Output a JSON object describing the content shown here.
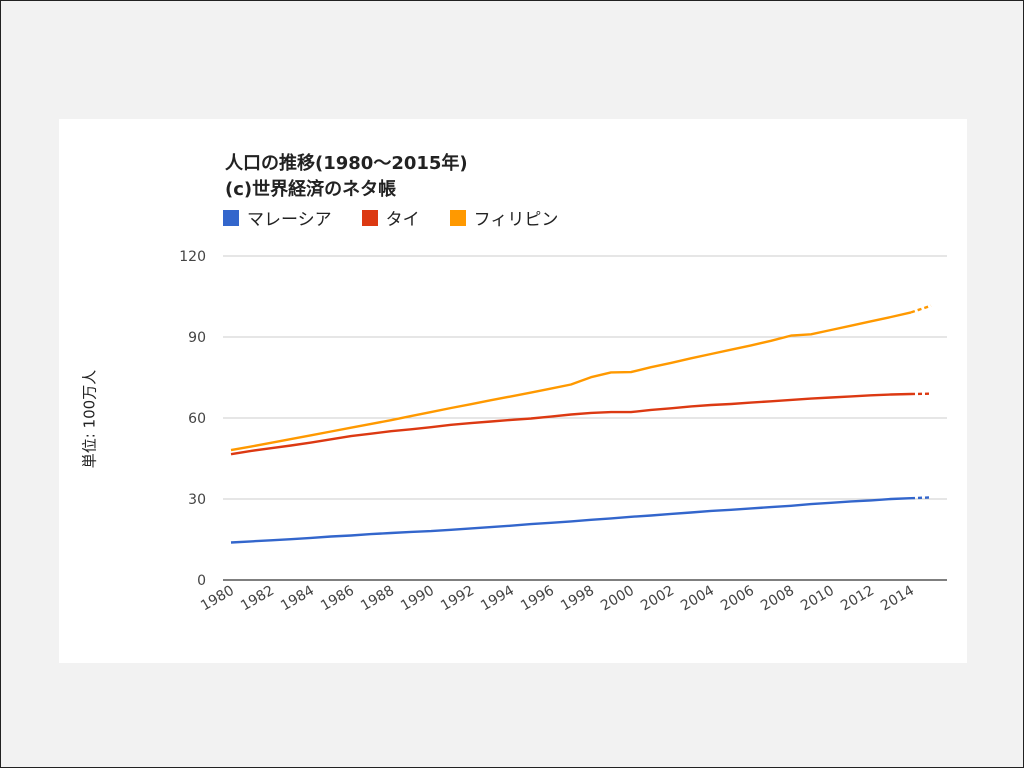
{
  "chart_data": {
    "type": "line",
    "title": "人口の推移(1980～2015年)",
    "subtitle": "(c)世界経済のネタ帳",
    "xlabel": "",
    "ylabel": "単位: 100万人",
    "ylim": [
      0,
      120
    ],
    "yticks": [
      0,
      30,
      60,
      90,
      120
    ],
    "grid": true,
    "legend": "top-left",
    "x": [
      1980,
      1981,
      1982,
      1983,
      1984,
      1985,
      1986,
      1987,
      1988,
      1989,
      1990,
      1991,
      1992,
      1993,
      1994,
      1995,
      1996,
      1997,
      1998,
      1999,
      2000,
      2001,
      2002,
      2003,
      2004,
      2005,
      2006,
      2007,
      2008,
      2009,
      2010,
      2011,
      2012,
      2013,
      2014,
      2015
    ],
    "xtick_labels": [
      "1980",
      "1982",
      "1984",
      "1986",
      "1988",
      "1990",
      "1992",
      "1994",
      "1996",
      "1998",
      "2000",
      "2002",
      "2004",
      "2006",
      "2008",
      "2010",
      "2012",
      "2014"
    ],
    "estimate_from_x": 2014,
    "series": [
      {
        "name": "マレーシア",
        "color": "#3366cc",
        "values": [
          13.9,
          14.3,
          14.7,
          15.1,
          15.6,
          16.1,
          16.5,
          17.0,
          17.4,
          17.8,
          18.1,
          18.6,
          19.1,
          19.6,
          20.1,
          20.7,
          21.2,
          21.7,
          22.3,
          22.8,
          23.4,
          23.9,
          24.5,
          25.0,
          25.6,
          26.0,
          26.5,
          27.0,
          27.5,
          28.1,
          28.6,
          29.1,
          29.5,
          30.0,
          30.3,
          30.6
        ]
      },
      {
        "name": "タイ",
        "color": "#dc3912",
        "values": [
          46.6,
          47.8,
          48.8,
          49.8,
          50.9,
          52.1,
          53.3,
          54.2,
          55.1,
          55.8,
          56.6,
          57.5,
          58.1,
          58.7,
          59.3,
          59.8,
          60.5,
          61.3,
          61.9,
          62.2,
          62.2,
          63.0,
          63.6,
          64.3,
          64.8,
          65.2,
          65.7,
          66.2,
          66.7,
          67.2,
          67.6,
          68.0,
          68.4,
          68.7,
          68.9,
          69.0
        ]
      },
      {
        "name": "フィリピン",
        "color": "#ff9900",
        "values": [
          48.1,
          49.4,
          50.8,
          52.2,
          53.6,
          55.0,
          56.4,
          57.8,
          59.2,
          60.7,
          62.2,
          63.7,
          65.1,
          66.6,
          68.0,
          69.4,
          70.9,
          72.4,
          75.1,
          76.9,
          77.0,
          78.8,
          80.4,
          82.1,
          83.7,
          85.3,
          86.9,
          88.6,
          90.5,
          91.0,
          92.6,
          94.2,
          95.8,
          97.4,
          99.1,
          101.6
        ]
      }
    ]
  }
}
